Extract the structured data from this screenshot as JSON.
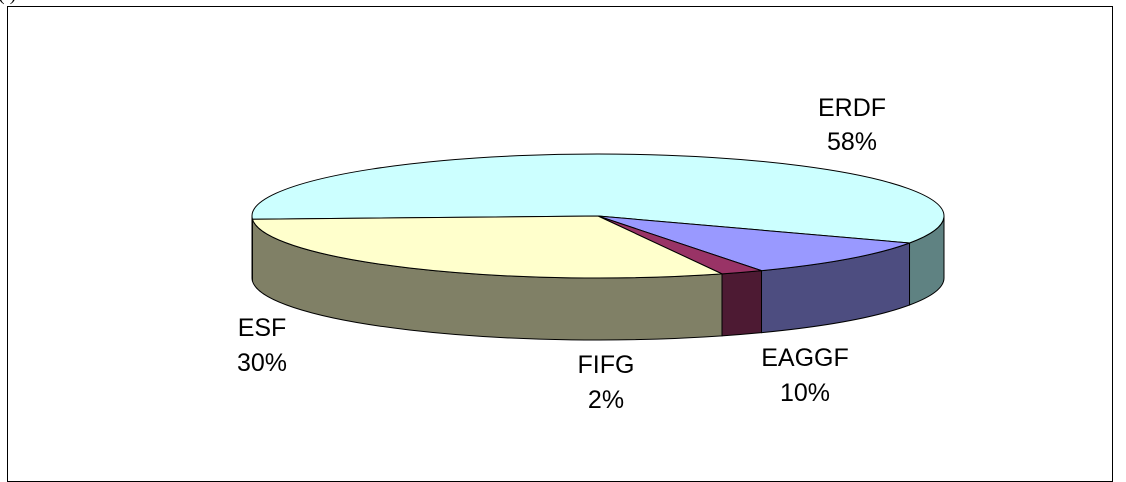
{
  "header_fragment": "(                                           )",
  "colors": {
    "ERDF_top": "#ccffff",
    "ERDF_side": "#5f8282",
    "EAGGF_top": "#9999ff",
    "EAGGF_side": "#4d4d80",
    "FIFG_top": "#993366",
    "FIFG_side": "#4d1a33",
    "ESF_top": "#ffffcc",
    "ESF_side": "#808066"
  },
  "chart_data": {
    "type": "pie",
    "categories": [
      "ERDF",
      "EAGGF",
      "FIFG",
      "ESF"
    ],
    "values": [
      58,
      10,
      2,
      30
    ],
    "data_labels": [
      {
        "name": "ERDF",
        "pct": "58%"
      },
      {
        "name": "EAGGF",
        "pct": "10%"
      },
      {
        "name": "FIFG",
        "pct": "2%"
      },
      {
        "name": "ESF",
        "pct": "30%"
      }
    ]
  }
}
